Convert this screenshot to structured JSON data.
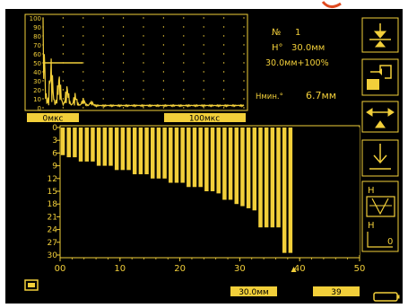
{
  "colors": {
    "accent": "#f2cf3a",
    "background": "#000000",
    "text": "#f2cf3a",
    "frame": "#e04a20"
  },
  "ascan": {
    "y_ticks": [
      "100",
      "90",
      "80",
      "70",
      "60",
      "50",
      "40",
      "30",
      "20",
      "10",
      "0"
    ],
    "start_label": "0мкс",
    "end_label": "100мкс",
    "gate_level_percent": 50
  },
  "readouts": {
    "number_label": "№",
    "number_value": "1",
    "h_label": "H°",
    "h_value": "30.0мм",
    "gain_line": "30.0мм+100%",
    "hmin_label": "Hмин.°",
    "hmin_value": "6.7мм"
  },
  "thickness_map": {
    "depth_ticks": [
      "0",
      "3",
      "6",
      "9",
      "12",
      "15",
      "18",
      "21",
      "24",
      "27",
      "30"
    ],
    "x_ticks": [
      "00",
      "10",
      "20",
      "30",
      "40",
      "50"
    ],
    "x_range": [
      0,
      50
    ],
    "depth_range": [
      0,
      30
    ],
    "scan_end_x": 39,
    "bars": [
      {
        "x": 0.5,
        "depth": 6.5
      },
      {
        "x": 1.5,
        "depth": 7.0
      },
      {
        "x": 2.5,
        "depth": 7.0
      },
      {
        "x": 3.5,
        "depth": 8.0
      },
      {
        "x": 4.5,
        "depth": 8.0
      },
      {
        "x": 5.5,
        "depth": 8.0
      },
      {
        "x": 6.5,
        "depth": 9.0
      },
      {
        "x": 7.5,
        "depth": 9.0
      },
      {
        "x": 8.5,
        "depth": 9.0
      },
      {
        "x": 9.5,
        "depth": 10.0
      },
      {
        "x": 10.5,
        "depth": 10.0
      },
      {
        "x": 11.5,
        "depth": 10.0
      },
      {
        "x": 12.5,
        "depth": 11.0
      },
      {
        "x": 13.5,
        "depth": 11.0
      },
      {
        "x": 14.5,
        "depth": 11.0
      },
      {
        "x": 15.5,
        "depth": 12.0
      },
      {
        "x": 16.5,
        "depth": 12.0
      },
      {
        "x": 17.5,
        "depth": 12.0
      },
      {
        "x": 18.5,
        "depth": 13.0
      },
      {
        "x": 19.5,
        "depth": 13.0
      },
      {
        "x": 20.5,
        "depth": 13.0
      },
      {
        "x": 21.5,
        "depth": 14.0
      },
      {
        "x": 22.5,
        "depth": 14.0
      },
      {
        "x": 23.5,
        "depth": 14.0
      },
      {
        "x": 24.5,
        "depth": 15.0
      },
      {
        "x": 25.5,
        "depth": 15.0
      },
      {
        "x": 26.5,
        "depth": 15.5
      },
      {
        "x": 27.5,
        "depth": 17.0
      },
      {
        "x": 28.5,
        "depth": 17.0
      },
      {
        "x": 29.5,
        "depth": 18.0
      },
      {
        "x": 30.5,
        "depth": 18.5
      },
      {
        "x": 31.5,
        "depth": 19.0
      },
      {
        "x": 32.5,
        "depth": 19.5
      },
      {
        "x": 33.5,
        "depth": 23.5
      },
      {
        "x": 34.5,
        "depth": 23.5
      },
      {
        "x": 35.5,
        "depth": 23.5
      },
      {
        "x": 36.5,
        "depth": 23.5
      },
      {
        "x": 37.5,
        "depth": 29.5
      },
      {
        "x": 38.5,
        "depth": 29.5
      }
    ]
  },
  "status": {
    "thickness_value": "30.0мм",
    "position_value": "39"
  },
  "icons": {
    "side_buttons": [
      "gate-down-icon",
      "range-icon",
      "width-icon",
      "probe-icon",
      "thickness-h-icon"
    ],
    "status_left": "memory-icon",
    "battery": "battery-icon"
  }
}
